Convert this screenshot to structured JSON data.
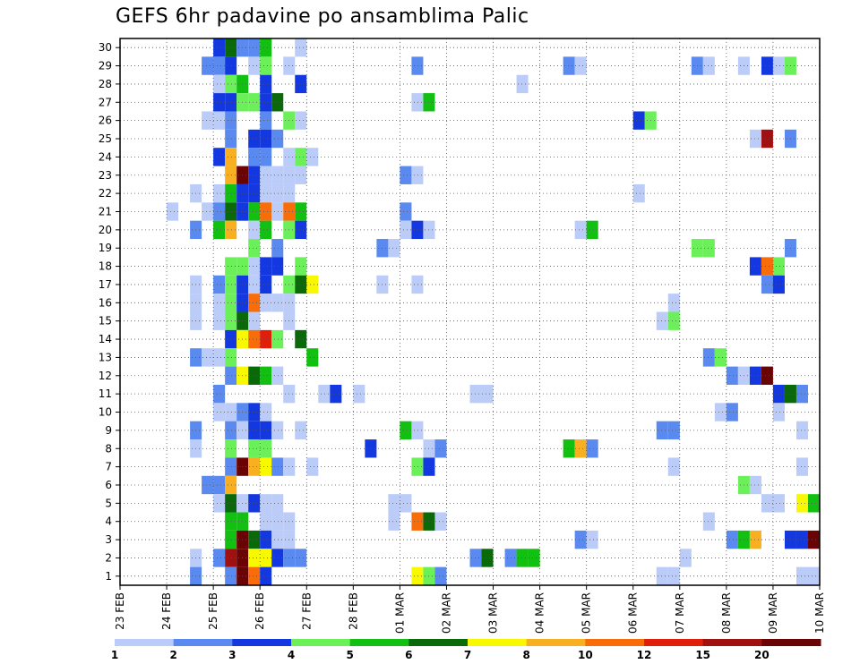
{
  "chart_data": {
    "type": "heatmap",
    "title": "GEFS 6hr padavine po ansamblima Palic",
    "xlabel": "",
    "ylabel": "",
    "x_ticks": [
      "23 FEB",
      "24 FEB",
      "25 FEB",
      "26 FEB",
      "27 FEB",
      "28 FEB",
      "01 MAR",
      "02 MAR",
      "03 MAR",
      "04 MAR",
      "05 MAR",
      "06 MAR",
      "07 MAR",
      "08 MAR",
      "09 MAR",
      "10 MAR"
    ],
    "y_ticks": [
      "1",
      "2",
      "3",
      "4",
      "5",
      "6",
      "7",
      "8",
      "9",
      "10",
      "11",
      "12",
      "13",
      "14",
      "15",
      "16",
      "17",
      "18",
      "19",
      "20",
      "21",
      "22",
      "23",
      "24",
      "25",
      "26",
      "27",
      "28",
      "29",
      "30"
    ],
    "x_steps_per_day": 4,
    "y_members": 30,
    "grid": true,
    "colorbar": {
      "position": "bottom",
      "labels": [
        "1",
        "2",
        "3",
        "4",
        "5",
        "6",
        "7",
        "8",
        "10",
        "12",
        "15",
        "20"
      ],
      "colors": [
        "#bcccf8",
        "#5a8af0",
        "#1438e0",
        "#6cf05a",
        "#12c012",
        "#0a6a0a",
        "#f8f800",
        "#f8b020",
        "#f86c0a",
        "#e01e0a",
        "#a01010",
        "#6a0404"
      ]
    },
    "cells_note": "each cell = [member, 6h step index from 23 FEB 00z, color class 0-11]",
    "cells": [
      [
        30,
        8,
        2
      ],
      [
        30,
        9,
        5
      ],
      [
        30,
        10,
        1
      ],
      [
        30,
        11,
        1
      ],
      [
        30,
        12,
        4
      ],
      [
        30,
        15,
        0
      ],
      [
        29,
        7,
        1
      ],
      [
        29,
        8,
        1
      ],
      [
        29,
        9,
        2
      ],
      [
        29,
        11,
        0
      ],
      [
        29,
        12,
        3
      ],
      [
        29,
        14,
        0
      ],
      [
        29,
        25,
        1
      ],
      [
        29,
        38,
        1
      ],
      [
        29,
        39,
        0
      ],
      [
        29,
        49,
        1
      ],
      [
        29,
        50,
        0
      ],
      [
        29,
        53,
        0
      ],
      [
        29,
        55,
        2
      ],
      [
        29,
        56,
        0
      ],
      [
        29,
        57,
        3
      ],
      [
        28,
        8,
        0
      ],
      [
        28,
        9,
        3
      ],
      [
        28,
        10,
        4
      ],
      [
        28,
        12,
        2
      ],
      [
        28,
        15,
        2
      ],
      [
        28,
        34,
        0
      ],
      [
        27,
        8,
        2
      ],
      [
        27,
        9,
        2
      ],
      [
        27,
        10,
        3
      ],
      [
        27,
        11,
        3
      ],
      [
        27,
        12,
        2
      ],
      [
        27,
        13,
        5
      ],
      [
        27,
        25,
        0
      ],
      [
        27,
        26,
        4
      ],
      [
        26,
        7,
        0
      ],
      [
        26,
        8,
        0
      ],
      [
        26,
        9,
        1
      ],
      [
        26,
        12,
        1
      ],
      [
        26,
        14,
        3
      ],
      [
        26,
        15,
        0
      ],
      [
        26,
        44,
        2
      ],
      [
        26,
        45,
        3
      ],
      [
        25,
        9,
        1
      ],
      [
        25,
        11,
        2
      ],
      [
        25,
        12,
        2
      ],
      [
        25,
        13,
        1
      ],
      [
        25,
        54,
        0
      ],
      [
        25,
        55,
        10
      ],
      [
        25,
        57,
        1
      ],
      [
        24,
        8,
        2
      ],
      [
        24,
        9,
        7
      ],
      [
        24,
        11,
        1
      ],
      [
        24,
        12,
        1
      ],
      [
        24,
        14,
        0
      ],
      [
        24,
        15,
        3
      ],
      [
        24,
        16,
        0
      ],
      [
        23,
        9,
        7
      ],
      [
        23,
        10,
        11
      ],
      [
        23,
        11,
        2
      ],
      [
        23,
        12,
        0
      ],
      [
        23,
        13,
        0
      ],
      [
        23,
        14,
        0
      ],
      [
        23,
        15,
        0
      ],
      [
        23,
        24,
        1
      ],
      [
        23,
        25,
        0
      ],
      [
        22,
        6,
        0
      ],
      [
        22,
        8,
        0
      ],
      [
        22,
        9,
        4
      ],
      [
        22,
        10,
        2
      ],
      [
        22,
        11,
        2
      ],
      [
        22,
        12,
        0
      ],
      [
        22,
        13,
        0
      ],
      [
        22,
        14,
        0
      ],
      [
        22,
        44,
        0
      ],
      [
        21,
        4,
        0
      ],
      [
        21,
        7,
        0
      ],
      [
        21,
        8,
        1
      ],
      [
        21,
        9,
        5
      ],
      [
        21,
        10,
        2
      ],
      [
        21,
        11,
        4
      ],
      [
        21,
        12,
        8
      ],
      [
        21,
        13,
        0
      ],
      [
        21,
        14,
        8
      ],
      [
        21,
        15,
        4
      ],
      [
        21,
        24,
        1
      ],
      [
        20,
        6,
        1
      ],
      [
        20,
        8,
        4
      ],
      [
        20,
        9,
        7
      ],
      [
        20,
        11,
        0
      ],
      [
        20,
        12,
        4
      ],
      [
        20,
        14,
        3
      ],
      [
        20,
        15,
        2
      ],
      [
        20,
        24,
        0
      ],
      [
        20,
        25,
        2
      ],
      [
        20,
        26,
        0
      ],
      [
        20,
        39,
        0
      ],
      [
        20,
        40,
        4
      ],
      [
        19,
        11,
        3
      ],
      [
        19,
        13,
        1
      ],
      [
        19,
        22,
        1
      ],
      [
        19,
        23,
        0
      ],
      [
        19,
        49,
        3
      ],
      [
        19,
        50,
        3
      ],
      [
        19,
        57,
        1
      ],
      [
        18,
        9,
        3
      ],
      [
        18,
        10,
        3
      ],
      [
        18,
        11,
        0
      ],
      [
        18,
        12,
        2
      ],
      [
        18,
        13,
        2
      ],
      [
        18,
        15,
        3
      ],
      [
        18,
        54,
        2
      ],
      [
        18,
        55,
        8
      ],
      [
        18,
        56,
        3
      ],
      [
        17,
        6,
        0
      ],
      [
        17,
        8,
        1
      ],
      [
        17,
        9,
        3
      ],
      [
        17,
        10,
        2
      ],
      [
        17,
        11,
        0
      ],
      [
        17,
        12,
        2
      ],
      [
        17,
        14,
        3
      ],
      [
        17,
        15,
        5
      ],
      [
        17,
        16,
        6
      ],
      [
        17,
        22,
        0
      ],
      [
        17,
        25,
        0
      ],
      [
        17,
        55,
        1
      ],
      [
        17,
        56,
        2
      ],
      [
        16,
        6,
        0
      ],
      [
        16,
        8,
        0
      ],
      [
        16,
        9,
        3
      ],
      [
        16,
        10,
        2
      ],
      [
        16,
        11,
        8
      ],
      [
        16,
        12,
        0
      ],
      [
        16,
        13,
        0
      ],
      [
        16,
        14,
        0
      ],
      [
        16,
        47,
        0
      ],
      [
        15,
        6,
        0
      ],
      [
        15,
        8,
        0
      ],
      [
        15,
        9,
        3
      ],
      [
        15,
        10,
        5
      ],
      [
        15,
        11,
        0
      ],
      [
        15,
        14,
        0
      ],
      [
        15,
        46,
        0
      ],
      [
        15,
        47,
        3
      ],
      [
        14,
        9,
        2
      ],
      [
        14,
        10,
        6
      ],
      [
        14,
        11,
        8
      ],
      [
        14,
        12,
        9
      ],
      [
        14,
        13,
        3
      ],
      [
        14,
        15,
        5
      ],
      [
        13,
        6,
        1
      ],
      [
        13,
        7,
        0
      ],
      [
        13,
        8,
        0
      ],
      [
        13,
        9,
        3
      ],
      [
        13,
        16,
        4
      ],
      [
        13,
        50,
        1
      ],
      [
        13,
        51,
        3
      ],
      [
        12,
        9,
        1
      ],
      [
        12,
        10,
        6
      ],
      [
        12,
        11,
        5
      ],
      [
        12,
        12,
        4
      ],
      [
        12,
        13,
        0
      ],
      [
        12,
        52,
        1
      ],
      [
        12,
        53,
        0
      ],
      [
        12,
        54,
        2
      ],
      [
        12,
        55,
        11
      ],
      [
        11,
        8,
        1
      ],
      [
        11,
        14,
        0
      ],
      [
        11,
        17,
        0
      ],
      [
        11,
        18,
        2
      ],
      [
        11,
        20,
        0
      ],
      [
        11,
        30,
        0
      ],
      [
        11,
        31,
        0
      ],
      [
        11,
        56,
        2
      ],
      [
        11,
        57,
        5
      ],
      [
        11,
        58,
        1
      ],
      [
        10,
        8,
        0
      ],
      [
        10,
        9,
        0
      ],
      [
        10,
        10,
        1
      ],
      [
        10,
        11,
        2
      ],
      [
        10,
        12,
        0
      ],
      [
        10,
        51,
        0
      ],
      [
        10,
        52,
        1
      ],
      [
        10,
        56,
        0
      ],
      [
        9,
        6,
        1
      ],
      [
        9,
        9,
        1
      ],
      [
        9,
        10,
        0
      ],
      [
        9,
        11,
        2
      ],
      [
        9,
        12,
        2
      ],
      [
        9,
        13,
        0
      ],
      [
        9,
        15,
        0
      ],
      [
        9,
        24,
        4
      ],
      [
        9,
        25,
        0
      ],
      [
        9,
        46,
        1
      ],
      [
        9,
        47,
        1
      ],
      [
        9,
        58,
        0
      ],
      [
        8,
        6,
        0
      ],
      [
        8,
        9,
        3
      ],
      [
        8,
        11,
        3
      ],
      [
        8,
        12,
        3
      ],
      [
        8,
        21,
        2
      ],
      [
        8,
        26,
        0
      ],
      [
        8,
        27,
        1
      ],
      [
        8,
        38,
        4
      ],
      [
        8,
        39,
        7
      ],
      [
        8,
        40,
        1
      ],
      [
        7,
        9,
        1
      ],
      [
        7,
        10,
        11
      ],
      [
        7,
        11,
        7
      ],
      [
        7,
        12,
        6
      ],
      [
        7,
        13,
        1
      ],
      [
        7,
        14,
        0
      ],
      [
        7,
        16,
        0
      ],
      [
        7,
        25,
        3
      ],
      [
        7,
        26,
        2
      ],
      [
        7,
        47,
        0
      ],
      [
        7,
        58,
        0
      ],
      [
        6,
        7,
        1
      ],
      [
        6,
        8,
        1
      ],
      [
        6,
        9,
        7
      ],
      [
        6,
        53,
        3
      ],
      [
        6,
        54,
        0
      ],
      [
        5,
        8,
        0
      ],
      [
        5,
        9,
        5
      ],
      [
        5,
        10,
        0
      ],
      [
        5,
        11,
        2
      ],
      [
        5,
        12,
        0
      ],
      [
        5,
        13,
        0
      ],
      [
        5,
        23,
        0
      ],
      [
        5,
        24,
        0
      ],
      [
        5,
        55,
        0
      ],
      [
        5,
        56,
        0
      ],
      [
        5,
        58,
        6
      ],
      [
        5,
        59,
        4
      ],
      [
        4,
        9,
        4
      ],
      [
        4,
        10,
        4
      ],
      [
        4,
        12,
        0
      ],
      [
        4,
        13,
        0
      ],
      [
        4,
        14,
        0
      ],
      [
        4,
        23,
        0
      ],
      [
        4,
        25,
        8
      ],
      [
        4,
        26,
        5
      ],
      [
        4,
        27,
        0
      ],
      [
        4,
        50,
        0
      ],
      [
        3,
        9,
        4
      ],
      [
        3,
        10,
        11
      ],
      [
        3,
        11,
        5
      ],
      [
        3,
        12,
        2
      ],
      [
        3,
        13,
        0
      ],
      [
        3,
        14,
        0
      ],
      [
        3,
        39,
        1
      ],
      [
        3,
        40,
        0
      ],
      [
        3,
        52,
        1
      ],
      [
        3,
        53,
        4
      ],
      [
        3,
        54,
        7
      ],
      [
        3,
        57,
        2
      ],
      [
        3,
        58,
        2
      ],
      [
        3,
        59,
        11
      ],
      [
        2,
        6,
        0
      ],
      [
        2,
        8,
        1
      ],
      [
        2,
        9,
        10
      ],
      [
        2,
        10,
        11
      ],
      [
        2,
        11,
        6
      ],
      [
        2,
        12,
        6
      ],
      [
        2,
        13,
        2
      ],
      [
        2,
        14,
        1
      ],
      [
        2,
        15,
        1
      ],
      [
        2,
        30,
        1
      ],
      [
        2,
        31,
        5
      ],
      [
        2,
        33,
        1
      ],
      [
        2,
        34,
        4
      ],
      [
        2,
        35,
        4
      ],
      [
        2,
        48,
        0
      ],
      [
        1,
        6,
        1
      ],
      [
        1,
        9,
        1
      ],
      [
        1,
        10,
        11
      ],
      [
        1,
        11,
        8
      ],
      [
        1,
        12,
        2
      ],
      [
        1,
        25,
        6
      ],
      [
        1,
        26,
        3
      ],
      [
        1,
        27,
        1
      ],
      [
        1,
        46,
        0
      ],
      [
        1,
        47,
        0
      ],
      [
        1,
        58,
        0
      ],
      [
        1,
        59,
        0
      ]
    ]
  }
}
